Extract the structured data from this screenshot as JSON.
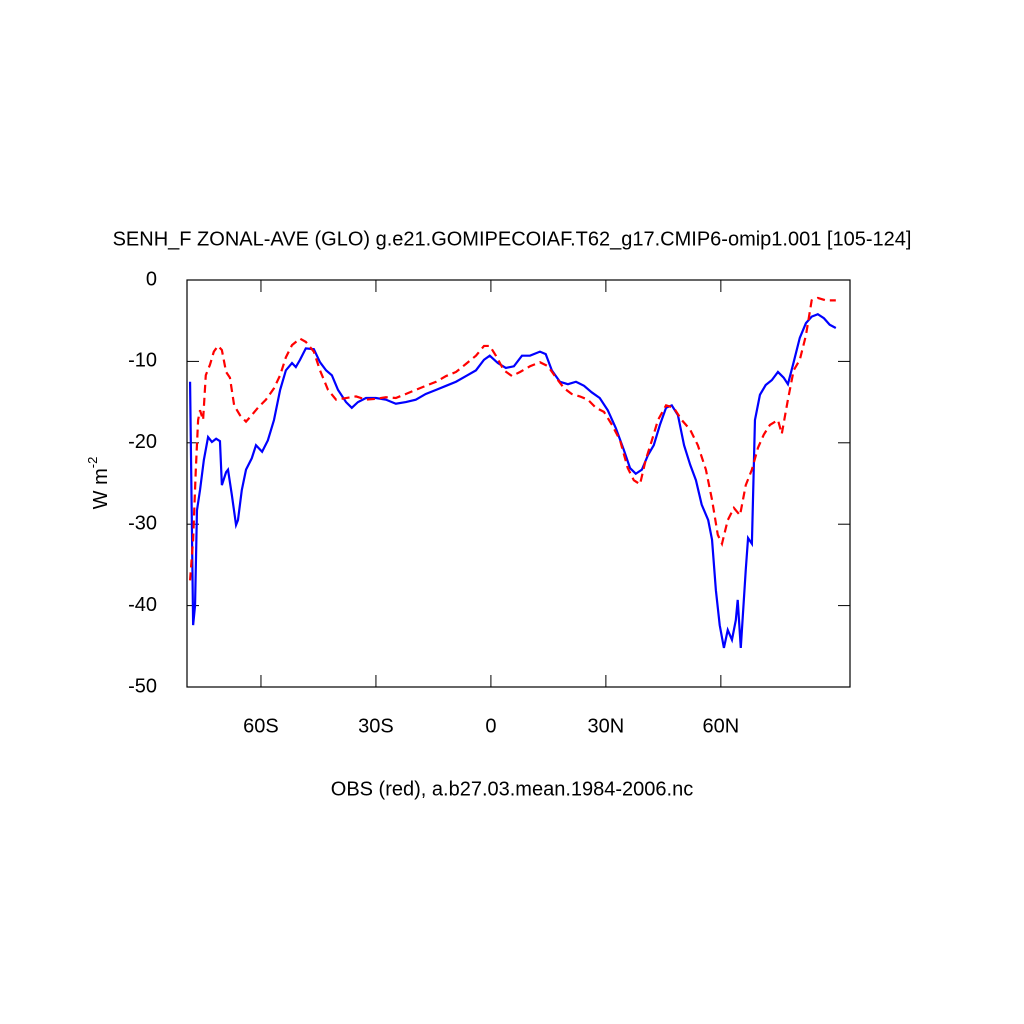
{
  "chart_data": {
    "type": "line",
    "title": "SENH_F ZONAL-AVE (GLO) g.e21.GOMIPECOIAF.T62_g17.CMIP6-omip1.001 [105-124]",
    "ylabel": {
      "text": "W m",
      "sup": "-2"
    },
    "xlabel": "OBS (red), a.b27.03.mean.1984-2006.nc",
    "xlim": [
      -79.3,
      93.7
    ],
    "ylim": [
      -50,
      0
    ],
    "xticks": [
      {
        "value": -60,
        "label": "60S"
      },
      {
        "value": -30,
        "label": "30S"
      },
      0,
      {
        "value": 30,
        "label": "30N"
      },
      {
        "value": 60,
        "label": "60N"
      }
    ],
    "yticks": [
      0,
      -10,
      -20,
      -30,
      -40,
      -50
    ],
    "series": [
      {
        "color": "#0000ff",
        "dash": false,
        "x": [
          -78.5,
          -77.7,
          -77.2,
          -76.7,
          -75.9,
          -74.9,
          -73.8,
          -72.8,
          -71.7,
          -70.7,
          -70.2,
          -69.1,
          -68.6,
          -67.6,
          -66.5,
          -66.0,
          -65.0,
          -63.9,
          -62.4,
          -61.3,
          -59.7,
          -58.2,
          -56.6,
          -55,
          -53.5,
          -51.9,
          -50.9,
          -49.8,
          -48.3,
          -46.2,
          -44.6,
          -43,
          -41.5,
          -39.9,
          -37.8,
          -36.3,
          -34.7,
          -32.6,
          -30,
          -27.4,
          -24.8,
          -22.2,
          -19.6,
          -17,
          -14.3,
          -11.7,
          -9.1,
          -6.5,
          -3.9,
          -1.8,
          -0.3,
          1.8,
          3.9,
          6,
          8.1,
          10.2,
          12.8,
          14.3,
          15.9,
          18,
          20.1,
          22.2,
          24.3,
          26.3,
          28.4,
          30.5,
          32.6,
          34.7,
          36.3,
          37.8,
          39.4,
          41,
          42.5,
          44.1,
          45.7,
          47.2,
          48.8,
          50.4,
          52,
          53.5,
          55,
          56.7,
          57.7,
          58.7,
          59.7,
          60.8,
          61.8,
          62.9,
          63.9,
          64.4,
          65.2,
          66.5,
          67.1,
          68.1,
          68.9,
          70.2,
          71.7,
          73.3,
          74.9,
          76.4,
          77.5,
          79,
          80.6,
          82.2,
          83.7,
          85.3,
          86.9,
          88.4,
          90
        ],
        "values": [
          -12.5,
          -42.4,
          -40,
          -28.3,
          -25.8,
          -22.1,
          -19.3,
          -19.9,
          -19.5,
          -19.8,
          -25.2,
          -23.6,
          -23.3,
          -26.4,
          -30.1,
          -29.5,
          -25.8,
          -23.3,
          -21.9,
          -20.3,
          -21.1,
          -19.7,
          -17.2,
          -13.5,
          -11.1,
          -10.2,
          -10.7,
          -9.8,
          -8.4,
          -8.5,
          -10.1,
          -11.1,
          -11.7,
          -13.5,
          -15,
          -15.7,
          -15,
          -14.5,
          -14.5,
          -14.7,
          -15.2,
          -15,
          -14.7,
          -14,
          -13.5,
          -13,
          -12.5,
          -11.8,
          -11.1,
          -9.8,
          -9.3,
          -10.2,
          -10.8,
          -10.6,
          -9.3,
          -9.3,
          -8.8,
          -9.1,
          -11.1,
          -12.5,
          -12.8,
          -12.5,
          -13,
          -13.8,
          -14.5,
          -16,
          -18.2,
          -20.9,
          -23.1,
          -23.8,
          -23.3,
          -21.5,
          -20.3,
          -17.8,
          -15.7,
          -15.4,
          -16.6,
          -20.3,
          -22.7,
          -24.6,
          -27.6,
          -29.5,
          -31.9,
          -38.1,
          -42.4,
          -45.2,
          -43,
          -44.2,
          -41.8,
          -39.3,
          -45.2,
          -35.6,
          -31.7,
          -32.4,
          -17.2,
          -14.1,
          -12.9,
          -12.3,
          -11.3,
          -12,
          -12.8,
          -10.1,
          -7.1,
          -5.3,
          -4.5,
          -4.2,
          -4.7,
          -5.5,
          -5.9
        ]
      },
      {
        "color": "#ff0000",
        "dash": true,
        "x": [
          -78.5,
          -77.7,
          -77,
          -76.4,
          -75.9,
          -75.1,
          -74.4,
          -73.3,
          -72.3,
          -71.2,
          -70.2,
          -69.1,
          -68.1,
          -67,
          -65.5,
          -63.9,
          -62.4,
          -60.8,
          -58.7,
          -56.6,
          -55,
          -53.5,
          -51.9,
          -49.8,
          -48.3,
          -46.2,
          -44.6,
          -42.5,
          -40.4,
          -37.8,
          -35.2,
          -32.6,
          -30,
          -27.4,
          -24.8,
          -22.2,
          -19.6,
          -17,
          -14.3,
          -11.7,
          -9.1,
          -6.5,
          -3.9,
          -1.8,
          -0.3,
          1.3,
          3.4,
          5.5,
          7.6,
          10.2,
          12.8,
          14.9,
          17,
          19.1,
          21.1,
          23.2,
          25.3,
          27.4,
          29.5,
          31.6,
          33.7,
          35.7,
          37.3,
          38.9,
          40.4,
          42,
          43.6,
          45.7,
          47.7,
          49.8,
          52,
          54,
          56.1,
          57.7,
          59.2,
          60.3,
          61.8,
          63.4,
          65,
          66.5,
          68.1,
          69.7,
          71.2,
          72.8,
          74.9,
          75.9,
          77.5,
          79,
          80.6,
          82.2,
          83.7,
          85.3,
          87.4,
          90
        ],
        "values": [
          -36.9,
          -31.9,
          -23.3,
          -17.2,
          -16,
          -17.2,
          -11.7,
          -10.4,
          -8.8,
          -8.1,
          -8.6,
          -11.3,
          -12,
          -15.4,
          -16.6,
          -17.4,
          -16.6,
          -15.7,
          -14.7,
          -13.3,
          -11.7,
          -9.5,
          -8,
          -7.2,
          -7.6,
          -8.8,
          -11.1,
          -13.5,
          -14.7,
          -14.5,
          -14.3,
          -14.7,
          -14.6,
          -14.4,
          -14.5,
          -14,
          -13.5,
          -13,
          -12.5,
          -11.8,
          -11.3,
          -10.3,
          -9.3,
          -8.1,
          -8.1,
          -9.3,
          -11.1,
          -11.8,
          -11.3,
          -10.6,
          -10.1,
          -10.6,
          -12,
          -13.3,
          -14,
          -14.3,
          -14.7,
          -15.7,
          -16.2,
          -17.8,
          -19.7,
          -23.1,
          -24.6,
          -25.1,
          -22.1,
          -19.7,
          -17.2,
          -15.4,
          -15.7,
          -17.2,
          -18.4,
          -20.3,
          -23.3,
          -27,
          -31.3,
          -32.4,
          -29.5,
          -28,
          -28.9,
          -25.2,
          -23.3,
          -20.6,
          -19,
          -17.8,
          -17.2,
          -18.9,
          -14.7,
          -11.1,
          -9.8,
          -6.8,
          -2.5,
          -2.2,
          -2.5,
          -2.5
        ]
      }
    ]
  }
}
